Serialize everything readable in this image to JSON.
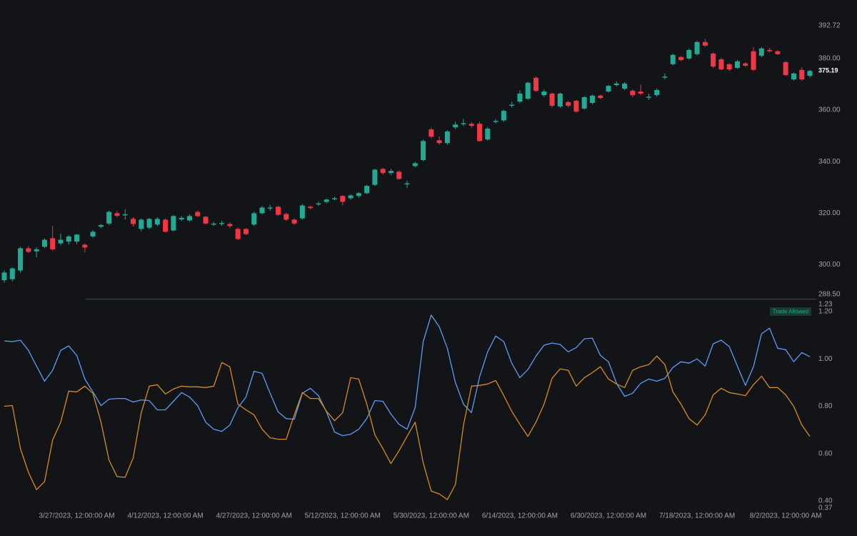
{
  "chart_data": [
    {
      "type": "candlestick",
      "ylim": [
        288.5,
        392.72
      ],
      "yticks": [
        {
          "value": 288.5,
          "label": "288.50"
        },
        {
          "value": 300,
          "label": "300.00"
        },
        {
          "value": 320,
          "label": "320.00"
        },
        {
          "value": 340,
          "label": "340.00"
        },
        {
          "value": 360,
          "label": "360.00"
        },
        {
          "value": 380,
          "label": "380.00"
        },
        392.72
      ],
      "series": [
        {
          "up_color": "#22ab94",
          "down_color": "#f23645",
          "open": [
            294,
            294.4,
            297.8,
            306.4,
            305.2,
            307,
            310.3,
            308.3,
            309,
            309,
            307.8,
            311,
            314.8,
            316,
            320,
            319.2,
            317.8,
            313.9,
            314.4,
            315.6,
            317.5,
            313.3,
            317.6,
            317.2,
            320.5,
            318.6,
            315.6,
            315.8,
            315.8,
            313.9,
            313.9,
            315.6,
            320,
            321.8,
            322.5,
            319.7,
            317.5,
            318,
            322.5,
            323.4,
            324.4,
            325.4,
            326.7,
            325.8,
            326.7,
            327.8,
            331,
            337.2,
            335.6,
            336.1,
            331.2,
            338.3,
            340.6,
            352.5,
            348.3,
            347.2,
            353.3,
            354.5,
            354.7,
            354.7,
            348.6,
            355.4,
            356,
            361.7,
            363.3,
            364.4,
            372.5,
            365.8,
            366.4,
            361.4,
            363.1,
            363.6,
            360.6,
            362.8,
            365.6,
            367.2,
            369.7,
            368.3,
            367.5,
            367.2,
            364.8,
            365.8,
            372.6,
            377.8,
            380.6,
            380,
            381.7,
            386.4,
            381.9,
            379.7,
            377.8,
            376.4,
            378.1,
            382.8,
            381.1,
            383.3,
            382.8,
            378.6,
            371.9,
            375.6,
            373.3
          ],
          "high": [
            297.8,
            299,
            307,
            307.2,
            306.8,
            310.2,
            315,
            312,
            311.5,
            312,
            308.2,
            313.5,
            315.8,
            321,
            320.8,
            321.5,
            318.5,
            318,
            318.2,
            318.5,
            318,
            319.3,
            319,
            319.6,
            321,
            319,
            316.6,
            317,
            316.4,
            314.5,
            314.2,
            320.6,
            322.8,
            323.2,
            323,
            320.2,
            318,
            323.6,
            323,
            324.5,
            325.8,
            326.4,
            327,
            327.4,
            328.2,
            331,
            337.2,
            337.6,
            337.2,
            336.6,
            332.6,
            340,
            348.5,
            353.2,
            349.8,
            352.2,
            355.5,
            356.6,
            355.4,
            355.6,
            353.4,
            356.5,
            360.2,
            363.2,
            367.6,
            371,
            373,
            368,
            366.8,
            366.8,
            363.6,
            364,
            365.4,
            366,
            366,
            369.8,
            371.2,
            370.8,
            368,
            369.8,
            366.4,
            368.4,
            374.2,
            381.8,
            381,
            383.8,
            386.8,
            387.6,
            382.4,
            380.2,
            378.2,
            379.4,
            378.6,
            384.4,
            384.4,
            384.2,
            383.2,
            379,
            374.6,
            376.6,
            375.6
          ],
          "low": [
            293,
            293.5,
            297,
            304.5,
            303,
            306.5,
            305.5,
            307.5,
            307.8,
            308,
            304.8,
            310.5,
            314.2,
            315.5,
            318.5,
            317.5,
            314.8,
            313,
            313.8,
            315,
            312.5,
            313,
            317,
            316.8,
            318.5,
            315.6,
            315,
            315.2,
            314.2,
            309.5,
            311.5,
            315,
            319.5,
            321,
            319,
            317,
            315.5,
            317.6,
            321.5,
            322.8,
            323.8,
            325,
            323,
            325.2,
            326,
            327.4,
            330.6,
            335,
            334.8,
            333,
            329.8,
            337.8,
            340.2,
            349,
            346.6,
            346.6,
            352.6,
            353.8,
            353.2,
            347.8,
            348.2,
            354.8,
            355.5,
            361,
            362.6,
            364,
            367,
            365.2,
            361,
            360.8,
            361,
            359,
            360.2,
            362.2,
            364.3,
            366.8,
            369.2,
            367.8,
            365,
            365.8,
            364,
            365.2,
            372,
            377.4,
            379,
            379.6,
            381.2,
            384.6,
            376.4,
            375.4,
            375.2,
            376,
            376.8,
            375.2,
            380.6,
            382.4,
            381.4,
            373.2,
            371.4,
            371.4,
            372.6
          ],
          "close": [
            297,
            298.6,
            306.4,
            305,
            306,
            309.7,
            306,
            309.7,
            311,
            311.7,
            306.7,
            312.8,
            315.4,
            320.5,
            319,
            319.6,
            315.8,
            317.5,
            317.8,
            317.8,
            312.8,
            318.9,
            318.2,
            318.9,
            318.9,
            316,
            316,
            316.2,
            315,
            310,
            311.9,
            320,
            322.2,
            322.2,
            319.4,
            317.5,
            316,
            323,
            322,
            323.8,
            325.3,
            325.8,
            324.4,
            326.9,
            327.8,
            330.6,
            336.9,
            335.6,
            336.4,
            333.3,
            331.6,
            339.4,
            348,
            349.7,
            347.2,
            351.7,
            354.4,
            354.9,
            353.9,
            348,
            352.8,
            355.8,
            359.7,
            362.1,
            366.4,
            370.6,
            367.5,
            367.2,
            361.7,
            366.4,
            361.7,
            359.4,
            365,
            365.6,
            364.7,
            369.4,
            370.3,
            370.3,
            365.8,
            366.4,
            365.2,
            367.8,
            373,
            381.4,
            379.4,
            383.3,
            386.4,
            385,
            376.9,
            375.8,
            375.8,
            378.9,
            377.2,
            375.6,
            383.9,
            382.8,
            381.7,
            373.6,
            374.2,
            371.9,
            375.19
          ]
        }
      ]
    },
    {
      "type": "line",
      "annotation": "Trade Allowed",
      "categories": [
        null,
        null,
        null,
        null,
        null,
        null,
        null,
        null,
        null,
        "3/27/2023, 12:00:00 AM",
        null,
        null,
        null,
        null,
        null,
        null,
        null,
        null,
        null,
        null,
        "4/12/2023, 12:00:00 AM",
        null,
        null,
        null,
        null,
        null,
        null,
        null,
        null,
        null,
        null,
        "4/27/2023, 12:00:00 AM",
        null,
        null,
        null,
        null,
        null,
        null,
        null,
        null,
        null,
        null,
        "5/12/2023, 12:00:00 AM",
        null,
        null,
        null,
        null,
        null,
        null,
        null,
        null,
        null,
        null,
        "5/30/2023, 12:00:00 AM",
        null,
        null,
        null,
        null,
        null,
        null,
        null,
        null,
        null,
        null,
        "6/14/2023, 12:00:00 AM",
        null,
        null,
        null,
        null,
        null,
        null,
        null,
        null,
        null,
        null,
        "6/30/2023, 12:00:00 AM",
        null,
        null,
        null,
        null,
        null,
        null,
        null,
        null,
        null,
        null,
        "7/18/2023, 12:00:00 AM",
        null,
        null,
        null,
        null,
        null,
        null,
        null,
        null,
        null,
        null,
        "8/2/2023, 12:00:00 AM",
        null,
        null,
        null
      ],
      "ylim": [
        0.37,
        1.23
      ],
      "yticks": [
        0.37,
        {
          "value": 0.4,
          "label": "0.40"
        },
        {
          "value": 0.6,
          "label": "0.60"
        },
        {
          "value": 0.8,
          "label": "0.80"
        },
        {
          "value": 1,
          "label": "1.00"
        },
        {
          "value": 1.2,
          "label": "1.20"
        },
        1.23
      ],
      "series": [
        {
          "color": "#5b9cf6",
          "values": [
            1.076,
            1.073,
            1.079,
            1.036,
            0.97,
            0.906,
            0.952,
            1.036,
            1.055,
            1.015,
            0.915,
            0.861,
            0.803,
            0.83,
            0.833,
            0.833,
            0.818,
            0.827,
            0.824,
            0.785,
            0.785,
            0.821,
            0.858,
            0.839,
            0.803,
            0.733,
            0.703,
            0.694,
            0.721,
            0.794,
            0.839,
            0.948,
            0.939,
            0.855,
            0.776,
            0.748,
            0.745,
            0.855,
            0.876,
            0.845,
            0.776,
            0.691,
            0.676,
            0.682,
            0.703,
            0.748,
            0.824,
            0.821,
            0.767,
            0.724,
            0.703,
            0.794,
            1.073,
            1.185,
            1.136,
            1.045,
            0.9,
            0.809,
            0.773,
            0.924,
            1.03,
            1.097,
            1.073,
            0.982,
            0.921,
            0.955,
            1.012,
            1.058,
            1.067,
            1.061,
            1.03,
            1.048,
            1.085,
            1.088,
            1.015,
            0.988,
            0.897,
            0.842,
            0.855,
            0.897,
            0.915,
            0.906,
            0.918,
            0.964,
            0.988,
            0.982,
            1.0,
            0.97,
            1.064,
            1.079,
            1.052,
            0.97,
            0.888,
            0.967,
            1.106,
            1.13,
            1.045,
            1.039,
            0.988,
            1.027,
            1.009
          ]
        },
        {
          "color": "#d98a1f",
          "values": [
            0.8,
            0.803,
            0.621,
            0.521,
            0.448,
            0.482,
            0.658,
            0.733,
            0.864,
            0.861,
            0.885,
            0.855,
            0.733,
            0.573,
            0.503,
            0.5,
            0.582,
            0.773,
            0.885,
            0.891,
            0.852,
            0.873,
            0.885,
            0.882,
            0.882,
            0.879,
            0.885,
            0.985,
            0.967,
            0.809,
            0.785,
            0.764,
            0.703,
            0.667,
            0.661,
            0.661,
            0.764,
            0.858,
            0.833,
            0.833,
            0.779,
            0.739,
            0.773,
            0.921,
            0.915,
            0.809,
            0.679,
            0.621,
            0.558,
            0.612,
            0.673,
            0.733,
            0.561,
            0.442,
            0.43,
            0.406,
            0.47,
            0.721,
            0.885,
            0.888,
            0.894,
            0.909,
            0.845,
            0.779,
            0.724,
            0.673,
            0.733,
            0.809,
            0.918,
            0.958,
            0.952,
            0.885,
            0.921,
            0.942,
            0.967,
            0.915,
            0.894,
            0.879,
            0.952,
            0.967,
            0.976,
            1.012,
            0.976,
            0.861,
            0.809,
            0.748,
            0.721,
            0.764,
            0.848,
            0.876,
            0.858,
            0.852,
            0.845,
            0.891,
            0.927,
            0.879,
            0.879,
            0.848,
            0.8,
            0.721,
            0.673
          ]
        }
      ]
    }
  ]
}
